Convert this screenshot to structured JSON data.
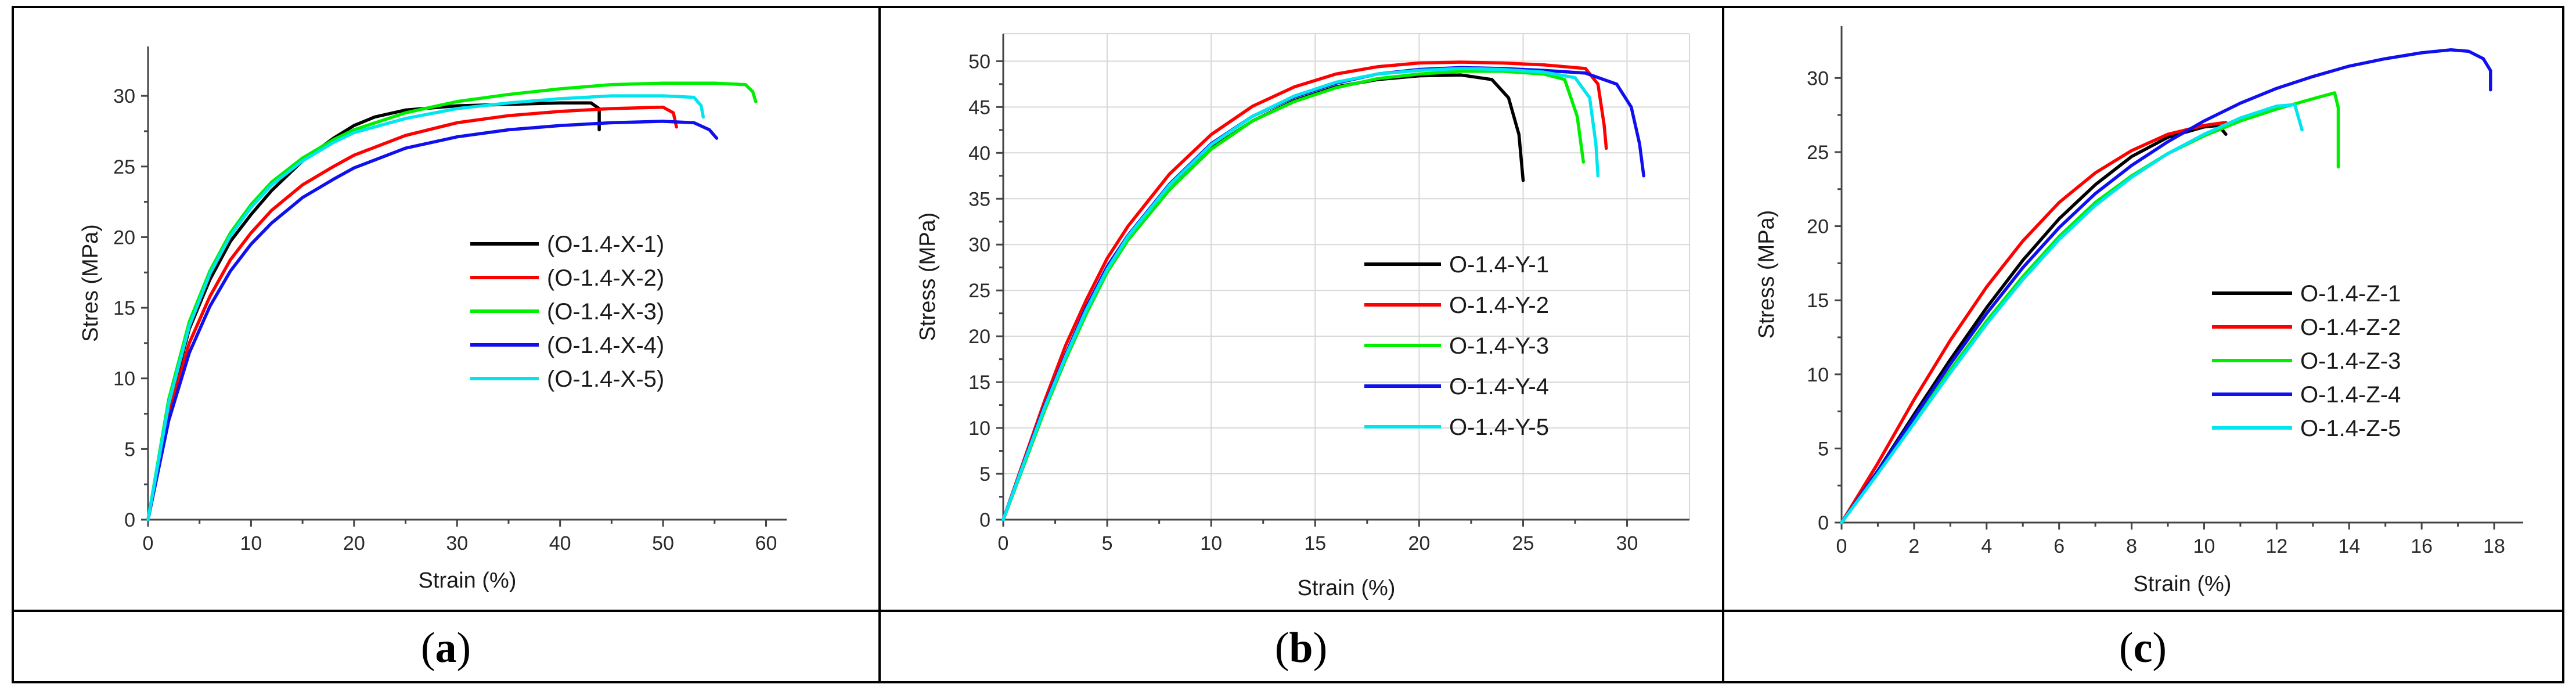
{
  "figure": {
    "captions": [
      {
        "open": "(",
        "letter": "a",
        "close": ")"
      },
      {
        "open": "(",
        "letter": "b",
        "close": ")"
      },
      {
        "open": "(",
        "letter": "c",
        "close": ")"
      }
    ]
  },
  "chart_data": [
    {
      "type": "line",
      "panel": "a",
      "xlabel": "Strain (%)",
      "ylabel": "Stres (MPa)",
      "xlim": [
        0,
        62
      ],
      "ylim": [
        0,
        33.5
      ],
      "xticks": [
        "0",
        "10",
        "20",
        "30",
        "40",
        "50",
        "60"
      ],
      "yticks": [
        "0",
        "5",
        "10",
        "15",
        "20",
        "25",
        "30"
      ],
      "grid": false,
      "legend_position": "center-right",
      "series": [
        {
          "name": "(O-1.4-X-1)",
          "color": "#000000",
          "x": [
            0,
            2,
            4,
            6,
            8,
            10,
            12,
            15,
            18,
            20,
            22,
            25,
            30,
            35,
            40,
            43,
            43.8,
            43.8
          ],
          "y": [
            0,
            8,
            13.5,
            17,
            19.7,
            21.6,
            23.3,
            25.4,
            27,
            27.9,
            28.5,
            29,
            29.3,
            29.4,
            29.5,
            29.5,
            29.1,
            27.6
          ]
        },
        {
          "name": "(O-1.4-X-2)",
          "color": "#ff0000",
          "x": [
            0,
            2,
            4,
            6,
            8,
            10,
            12,
            15,
            18,
            20,
            25,
            30,
            35,
            40,
            45,
            50,
            51,
            51.3
          ],
          "y": [
            0,
            7.5,
            12.5,
            15.8,
            18.4,
            20.3,
            21.9,
            23.7,
            25,
            25.8,
            27.2,
            28.1,
            28.6,
            28.9,
            29.1,
            29.2,
            28.8,
            27.8
          ]
        },
        {
          "name": "(O-1.4-X-3)",
          "color": "#00ee00",
          "x": [
            0,
            2,
            4,
            6,
            8,
            10,
            12,
            15,
            18,
            20,
            25,
            30,
            35,
            40,
            45,
            50,
            55,
            58,
            58.7,
            59
          ],
          "y": [
            0,
            8.5,
            14,
            17.6,
            20.3,
            22.3,
            23.9,
            25.6,
            26.9,
            27.6,
            28.8,
            29.6,
            30.1,
            30.5,
            30.8,
            30.9,
            30.9,
            30.8,
            30.3,
            29.6
          ]
        },
        {
          "name": "(O-1.4-X-4)",
          "color": "#1010ee",
          "x": [
            0,
            2,
            4,
            6,
            8,
            10,
            12,
            15,
            18,
            20,
            25,
            30,
            35,
            40,
            45,
            50,
            53,
            54.5,
            55.2
          ],
          "y": [
            0,
            7,
            11.8,
            15.1,
            17.6,
            19.5,
            21,
            22.8,
            24.1,
            24.9,
            26.3,
            27.1,
            27.6,
            27.9,
            28.1,
            28.2,
            28.1,
            27.6,
            27
          ]
        },
        {
          "name": "(O-1.4-X-5)",
          "color": "#00e5ee",
          "x": [
            0,
            2,
            4,
            6,
            8,
            10,
            12,
            15,
            18,
            20,
            25,
            30,
            35,
            40,
            45,
            50,
            53,
            53.7,
            53.9
          ],
          "y": [
            0,
            8.2,
            13.7,
            17.4,
            20.1,
            22.1,
            23.7,
            25.4,
            26.7,
            27.4,
            28.4,
            29.1,
            29.5,
            29.8,
            30,
            30,
            29.9,
            29.3,
            28.5
          ]
        }
      ]
    },
    {
      "type": "line",
      "panel": "b",
      "xlabel": "Strain (%)",
      "ylabel": "Stress (MPa)",
      "xlim": [
        0,
        33
      ],
      "ylim": [
        0,
        53
      ],
      "xticks": [
        "0",
        "5",
        "10",
        "15",
        "20",
        "25",
        "30"
      ],
      "yticks": [
        "0",
        "5",
        "10",
        "15",
        "20",
        "25",
        "30",
        "35",
        "40",
        "45",
        "50"
      ],
      "grid": true,
      "legend_position": "center-right",
      "series": [
        {
          "name": "O-1.4-Y-1",
          "color": "#000000",
          "x": [
            0,
            1,
            2,
            3,
            4,
            5,
            6,
            8,
            10,
            12,
            14,
            16,
            18,
            20,
            22,
            23.5,
            24.3,
            24.8,
            25
          ],
          "y": [
            0,
            6,
            12,
            17.5,
            22.5,
            27,
            30.5,
            36,
            40.5,
            43.5,
            45.7,
            47.2,
            48,
            48.4,
            48.5,
            48,
            46,
            42,
            37
          ]
        },
        {
          "name": "O-1.4-Y-2",
          "color": "#ff0000",
          "x": [
            0,
            1,
            2,
            3,
            4,
            5,
            6,
            8,
            10,
            12,
            14,
            16,
            18,
            20,
            22,
            24,
            26,
            28,
            28.6,
            28.9,
            29
          ],
          "y": [
            0,
            6.5,
            13,
            19,
            24,
            28.5,
            32,
            37.7,
            42,
            45.1,
            47.2,
            48.6,
            49.4,
            49.8,
            49.9,
            49.8,
            49.6,
            49.2,
            47.5,
            43,
            40.5
          ]
        },
        {
          "name": "O-1.4-Y-3",
          "color": "#00ee00",
          "x": [
            0,
            1,
            2,
            3,
            4,
            5,
            6,
            8,
            10,
            12,
            14,
            16,
            18,
            20,
            22,
            24,
            26,
            27,
            27.6,
            27.9
          ],
          "y": [
            0,
            6,
            12,
            17.5,
            22.5,
            27,
            30.5,
            36,
            40.4,
            43.5,
            45.6,
            47.1,
            48.1,
            48.6,
            48.9,
            48.9,
            48.6,
            48,
            44,
            39
          ]
        },
        {
          "name": "O-1.4-Y-4",
          "color": "#1010ee",
          "x": [
            0,
            1,
            2,
            3,
            4,
            5,
            6,
            8,
            10,
            12,
            14,
            16,
            18,
            20,
            22,
            24,
            26,
            28,
            29.5,
            30.2,
            30.6,
            30.8
          ],
          "y": [
            0,
            6.3,
            12.5,
            18,
            23.2,
            27.6,
            31,
            36.6,
            41,
            44,
            46.1,
            47.6,
            48.6,
            49.1,
            49.3,
            49.2,
            49,
            48.7,
            47.5,
            45,
            41,
            37.5
          ]
        },
        {
          "name": "O-1.4-Y-5",
          "color": "#00e5ee",
          "x": [
            0,
            1,
            2,
            3,
            4,
            5,
            6,
            8,
            10,
            12,
            14,
            16,
            18,
            20,
            22,
            24,
            26,
            27.5,
            28.2,
            28.5,
            28.6
          ],
          "y": [
            0,
            6.2,
            12.3,
            17.8,
            22.9,
            27.3,
            30.9,
            36.5,
            40.9,
            44,
            46.2,
            47.7,
            48.6,
            49,
            49.2,
            49.1,
            48.8,
            48.2,
            46,
            41,
            37.5
          ]
        }
      ]
    },
    {
      "type": "line",
      "panel": "c",
      "xlabel": "Strain (%)",
      "ylabel": "Stress (MPa)",
      "xlim": [
        0,
        18.8
      ],
      "ylim": [
        0,
        33.5
      ],
      "xticks": [
        "0",
        "2",
        "4",
        "6",
        "8",
        "10",
        "12",
        "14",
        "16",
        "18"
      ],
      "yticks": [
        "0",
        "5",
        "10",
        "15",
        "20",
        "25",
        "30"
      ],
      "grid": false,
      "legend_position": "center-right",
      "series": [
        {
          "name": "O-1.4-Z-1",
          "color": "#000000",
          "x": [
            0,
            1,
            2,
            3,
            4,
            5,
            6,
            7,
            8,
            9,
            10,
            10.4,
            10.5,
            10.6
          ],
          "y": [
            0,
            3.5,
            7.3,
            11,
            14.5,
            17.7,
            20.5,
            22.8,
            24.7,
            26,
            26.7,
            26.8,
            26.5,
            26.2
          ]
        },
        {
          "name": "O-1.4-Z-2",
          "color": "#ff0000",
          "x": [
            0,
            1,
            2,
            3,
            4,
            5,
            6,
            7,
            8,
            9,
            10,
            10.6
          ],
          "y": [
            0,
            4,
            8.3,
            12.3,
            15.9,
            19,
            21.6,
            23.6,
            25.1,
            26.2,
            26.8,
            27
          ]
        },
        {
          "name": "O-1.4-Z-3",
          "color": "#00ee00",
          "x": [
            0,
            1,
            2,
            3,
            4,
            5,
            6,
            7,
            8,
            9,
            10,
            11,
            12,
            13,
            13.6,
            13.7,
            13.7
          ],
          "y": [
            0,
            3.4,
            6.8,
            10.3,
            13.6,
            16.6,
            19.3,
            21.6,
            23.4,
            24.9,
            26.1,
            27.1,
            27.9,
            28.6,
            29,
            28,
            24
          ]
        },
        {
          "name": "O-1.4-Z-4",
          "color": "#1010ee",
          "x": [
            0,
            1,
            2,
            3,
            4,
            5,
            6,
            7,
            8,
            9,
            10,
            11,
            12,
            13,
            14,
            15,
            16,
            16.8,
            17.3,
            17.7,
            17.9,
            17.9
          ],
          "y": [
            0,
            3.5,
            7.1,
            10.7,
            14.1,
            17.2,
            19.9,
            22.2,
            24.1,
            25.7,
            27.1,
            28.3,
            29.3,
            30.1,
            30.8,
            31.3,
            31.7,
            31.9,
            31.8,
            31.3,
            30.5,
            29.2
          ]
        },
        {
          "name": "O-1.4-Z-5",
          "color": "#00e5ee",
          "x": [
            0,
            1,
            2,
            3,
            4,
            5,
            6,
            7,
            8,
            9,
            10,
            11,
            12,
            12.5,
            12.7
          ],
          "y": [
            0,
            3.3,
            6.7,
            10.1,
            13.4,
            16.4,
            19.1,
            21.4,
            23.3,
            24.9,
            26.2,
            27.3,
            28.1,
            28.2,
            26.5
          ]
        }
      ]
    }
  ]
}
